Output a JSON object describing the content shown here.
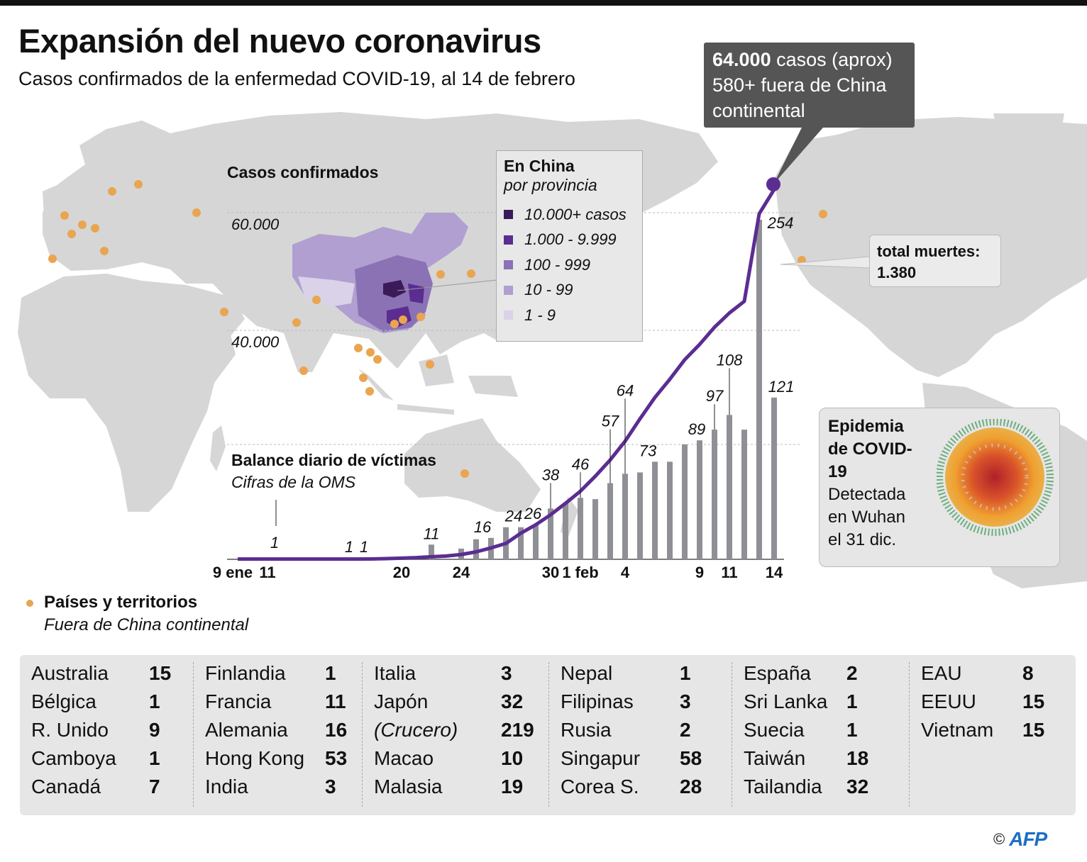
{
  "header": {
    "title": "Expansión del nuevo coronavirus",
    "subtitle": "Casos confirmados de la enfermedad COVID-19, al 14 de febrero"
  },
  "callout": {
    "bold": "64.000",
    "line1_rest": " casos (aprox)",
    "line2": "580+ fuera de China",
    "line3": "continental"
  },
  "deaths_box": {
    "label": "total muertes:",
    "value": "1.380"
  },
  "cases_axis": {
    "title": "Casos confirmados",
    "ticks": [
      "60.000",
      "40.000"
    ]
  },
  "china_legend": {
    "title": "En China",
    "subtitle": "por provincia",
    "items": [
      {
        "label": "10.000+ casos",
        "color": "#3b1a5a"
      },
      {
        "label": "1.000 - 9.999",
        "color": "#5b2d91"
      },
      {
        "label": "100 - 999",
        "color": "#8b72b5"
      },
      {
        "label": "10 - 99",
        "color": "#b09fd0"
      },
      {
        "label": "1 - 9",
        "color": "#d9d2e8"
      }
    ]
  },
  "virus_box": {
    "title": "Epidemia de COVID-19",
    "text1": "Detectada",
    "text2": "en Wuhan",
    "text3": "el 31 dic."
  },
  "countries_legend": {
    "title": "Países y territorios",
    "subtitle": "Fuera de China continental",
    "dot_color": "#e9a550"
  },
  "countries": [
    [
      {
        "name": "Australia",
        "count": "15"
      },
      {
        "name": "Bélgica",
        "count": "1"
      },
      {
        "name": "R. Unido",
        "count": "9"
      },
      {
        "name": "Camboya",
        "count": "1"
      },
      {
        "name": "Canadá",
        "count": "7"
      }
    ],
    [
      {
        "name": "Finlandia",
        "count": "1"
      },
      {
        "name": "Francia",
        "count": "11"
      },
      {
        "name": "Alemania",
        "count": "16"
      },
      {
        "name": "Hong Kong",
        "count": "53"
      },
      {
        "name": "India",
        "count": "3"
      }
    ],
    [
      {
        "name": "Italia",
        "count": "3"
      },
      {
        "name": "Japón",
        "count": "32"
      },
      {
        "name": "(Crucero)",
        "count": "219",
        "italic": true
      },
      {
        "name": "Macao",
        "count": "10"
      },
      {
        "name": "Malasia",
        "count": "19"
      }
    ],
    [
      {
        "name": "Nepal",
        "count": "1"
      },
      {
        "name": "Filipinas",
        "count": "3"
      },
      {
        "name": "Rusia",
        "count": "2"
      },
      {
        "name": "Singapur",
        "count": "58"
      },
      {
        "name": "Corea S.",
        "count": "28"
      }
    ],
    [
      {
        "name": "España",
        "count": "2"
      },
      {
        "name": "Sri Lanka",
        "count": "1"
      },
      {
        "name": "Suecia",
        "count": "1"
      },
      {
        "name": "Taiwán",
        "count": "18"
      },
      {
        "name": "Tailandia",
        "count": "32"
      }
    ],
    [
      {
        "name": "EAU",
        "count": "8"
      },
      {
        "name": "EEUU",
        "count": "15"
      },
      {
        "name": "Vietnam",
        "count": "15"
      }
    ]
  ],
  "footer": {
    "copyright": "©",
    "logo": "AFP"
  },
  "chart_data": {
    "type": "bar+line",
    "title": "Balance diario de víctimas",
    "subtitle": "Cifras de la OMS",
    "categories": [
      "9 ene",
      "10 ene",
      "11 ene",
      "12 ene",
      "13 ene",
      "14 ene",
      "15 ene",
      "16 ene",
      "17 ene",
      "18 ene",
      "19 ene",
      "20 ene",
      "21 ene",
      "22 ene",
      "23 ene",
      "24 ene",
      "25 ene",
      "26 ene",
      "27 ene",
      "28 ene",
      "29 ene",
      "30 ene",
      "31 ene",
      "1 feb",
      "2 feb",
      "3 feb",
      "4 feb",
      "5 feb",
      "6 feb",
      "7 feb",
      "8 feb",
      "9 feb",
      "10 feb",
      "11 feb",
      "12 feb",
      "13 feb",
      "14 feb"
    ],
    "x_tick_labels": [
      "9 ene",
      "11",
      "20",
      "24",
      "30",
      "1 feb",
      "4",
      "9",
      "11",
      "14"
    ],
    "series": [
      {
        "type": "bar",
        "color": "#8f9096",
        "values": [
          0,
          0,
          1,
          0,
          0,
          0,
          0,
          1,
          1,
          0,
          0,
          0,
          0,
          11,
          0,
          8,
          15,
          16,
          24,
          24,
          26,
          38,
          42,
          46,
          45,
          57,
          64,
          65,
          73,
          73,
          86,
          89,
          97,
          108,
          97,
          254,
          121
        ]
      },
      {
        "type": "line",
        "color": "#5b2d91",
        "values": [
          41,
          41,
          41,
          41,
          41,
          41,
          41,
          41,
          45,
          62,
          121,
          200,
          291,
          440,
          571,
          830,
          1287,
          1975,
          2744,
          4515,
          5974,
          7711,
          9692,
          11791,
          14380,
          17205,
          20438,
          24324,
          28018,
          31161,
          34546,
          37198,
          40171,
          42638,
          44653,
          59804,
          64000
        ]
      }
    ],
    "bar_labels": {
      "11 ene": "1",
      "16 ene": "1",
      "17 ene": "1",
      "22 ene": "11",
      "26 ene": "16",
      "28 ene": "24",
      "29 ene": "26",
      "30 ene": "38",
      "1 feb": "46",
      "3 feb": "57",
      "4 feb": "64",
      "6 feb": "73",
      "9 feb": "89",
      "10 feb": "97",
      "11 feb": "108",
      "13 feb": "254",
      "14 feb": "121"
    },
    "line_axis": {
      "ticks": [
        20000,
        40000,
        60000
      ],
      "ylim": [
        0,
        60000
      ]
    },
    "bar_axis": {
      "ylim": [
        0,
        254
      ]
    },
    "grid": "dotted"
  }
}
